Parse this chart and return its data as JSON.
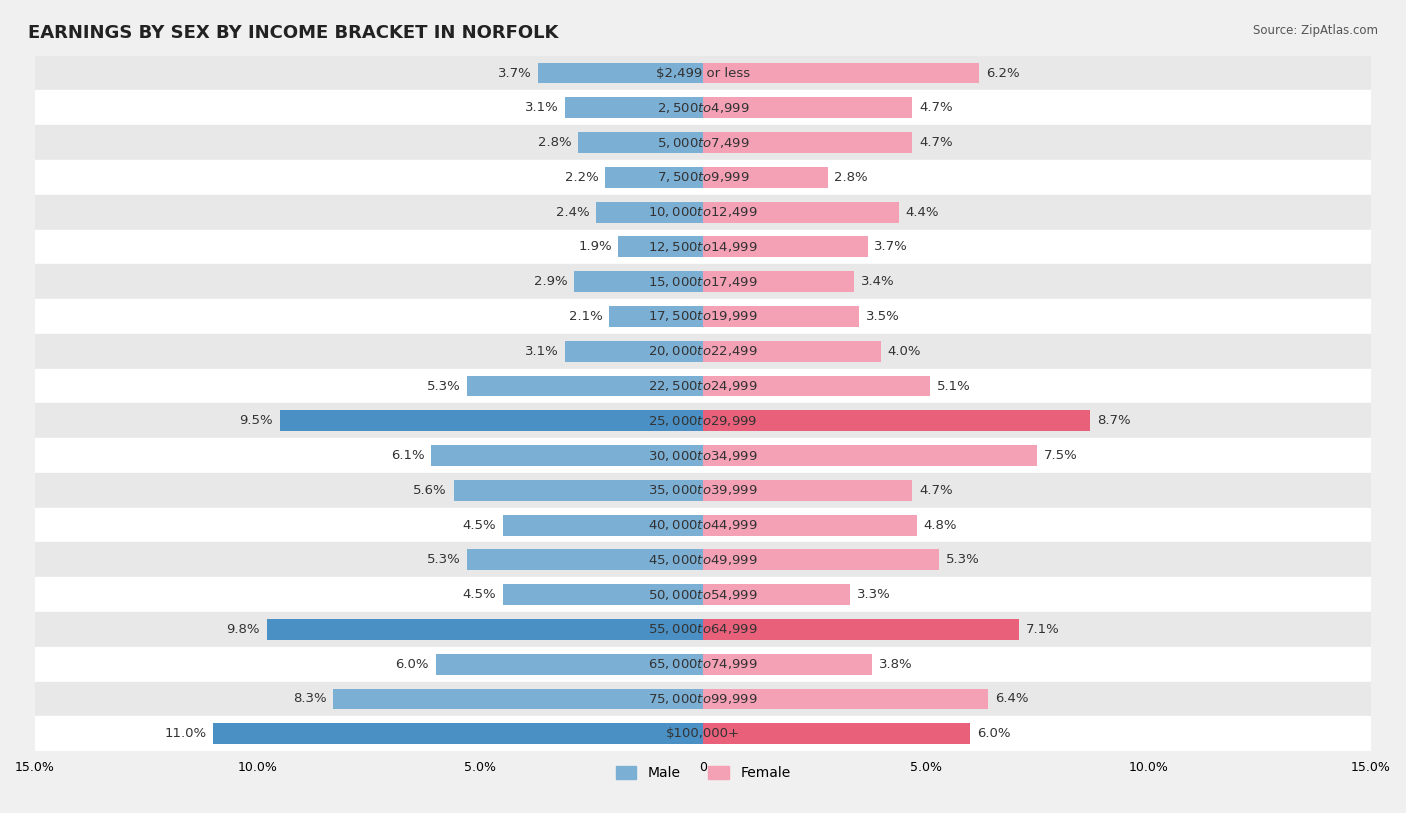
{
  "title": "EARNINGS BY SEX BY INCOME BRACKET IN NORFOLK",
  "source": "Source: ZipAtlas.com",
  "categories": [
    "$2,499 or less",
    "$2,500 to $4,999",
    "$5,000 to $7,499",
    "$7,500 to $9,999",
    "$10,000 to $12,499",
    "$12,500 to $14,999",
    "$15,000 to $17,499",
    "$17,500 to $19,999",
    "$20,000 to $22,499",
    "$22,500 to $24,999",
    "$25,000 to $29,999",
    "$30,000 to $34,999",
    "$35,000 to $39,999",
    "$40,000 to $44,999",
    "$45,000 to $49,999",
    "$50,000 to $54,999",
    "$55,000 to $64,999",
    "$65,000 to $74,999",
    "$75,000 to $99,999",
    "$100,000+"
  ],
  "male_values": [
    3.7,
    3.1,
    2.8,
    2.2,
    2.4,
    1.9,
    2.9,
    2.1,
    3.1,
    5.3,
    9.5,
    6.1,
    5.6,
    4.5,
    5.3,
    4.5,
    9.8,
    6.0,
    8.3,
    11.0
  ],
  "female_values": [
    6.2,
    4.7,
    4.7,
    2.8,
    4.4,
    3.7,
    3.4,
    3.5,
    4.0,
    5.1,
    8.7,
    7.5,
    4.7,
    4.8,
    5.3,
    3.3,
    7.1,
    3.8,
    6.4,
    6.0
  ],
  "male_color": "#7bafd4",
  "female_color": "#f4a0b5",
  "male_highlight_color": "#4a90c4",
  "female_highlight_color": "#e8607a",
  "highlight_rows": [
    10,
    16,
    19
  ],
  "xlim": 15.0,
  "background_color": "#f0f0f0",
  "row_alt_color": "#ffffff",
  "row_main_color": "#e8e8e8",
  "title_fontsize": 13,
  "label_fontsize": 9.5,
  "value_fontsize": 9.5,
  "category_fontsize": 9.5
}
